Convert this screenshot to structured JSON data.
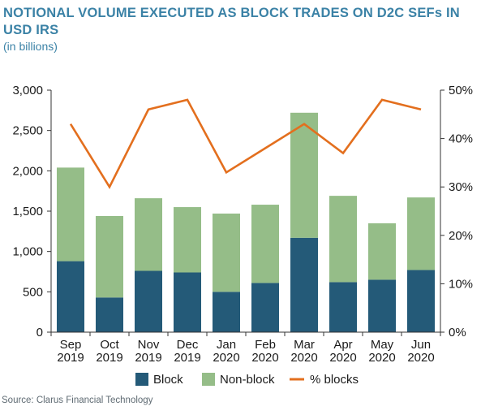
{
  "header": {
    "title": "NOTIONAL VOLUME EXECUTED AS BLOCK TRADES ON D2C SEFs IN USD IRS",
    "subtitle": "(in billions)"
  },
  "footer": {
    "source": "Source: Clarus Financial Technology"
  },
  "colors": {
    "block": "#245a78",
    "nonblock": "#95bd88",
    "pct": "#e36f1e",
    "axis": "#333333",
    "title": "#3b82a6"
  },
  "chart_data": {
    "type": "bar",
    "stacked": true,
    "categories": [
      [
        "Sep",
        "2019"
      ],
      [
        "Oct",
        "2019"
      ],
      [
        "Nov",
        "2019"
      ],
      [
        "Dec",
        "2019"
      ],
      [
        "Jan",
        "2020"
      ],
      [
        "Feb",
        "2020"
      ],
      [
        "Mar",
        "2020"
      ],
      [
        "Apr",
        "2020"
      ],
      [
        "May",
        "2020"
      ],
      [
        "Jun",
        "2020"
      ]
    ],
    "series": [
      {
        "name": "Block",
        "type": "bar",
        "axis": "left",
        "values": [
          880,
          430,
          760,
          740,
          500,
          610,
          1170,
          620,
          650,
          770
        ]
      },
      {
        "name": "Non-block",
        "type": "bar",
        "axis": "left",
        "values": [
          1160,
          1010,
          900,
          810,
          970,
          970,
          1550,
          1070,
          700,
          900
        ]
      },
      {
        "name": "% blocks",
        "type": "line",
        "axis": "right",
        "values": [
          43,
          30,
          46,
          48,
          33,
          38,
          43,
          37,
          48,
          46
        ]
      }
    ],
    "y_left": {
      "min": 0,
      "max": 3000,
      "ticks": [
        "0",
        "500",
        "1,000",
        "1,500",
        "2,000",
        "2,500",
        "3,000"
      ],
      "tick_values": [
        0,
        500,
        1000,
        1500,
        2000,
        2500,
        3000
      ]
    },
    "y_right": {
      "min": 0,
      "max": 50,
      "ticks": [
        "0%",
        "10%",
        "20%",
        "30%",
        "40%",
        "50%"
      ],
      "tick_values": [
        0,
        10,
        20,
        30,
        40,
        50
      ]
    },
    "grid": false,
    "legend": {
      "position": "bottom",
      "items": [
        "Block",
        "Non-block",
        "% blocks"
      ]
    }
  }
}
